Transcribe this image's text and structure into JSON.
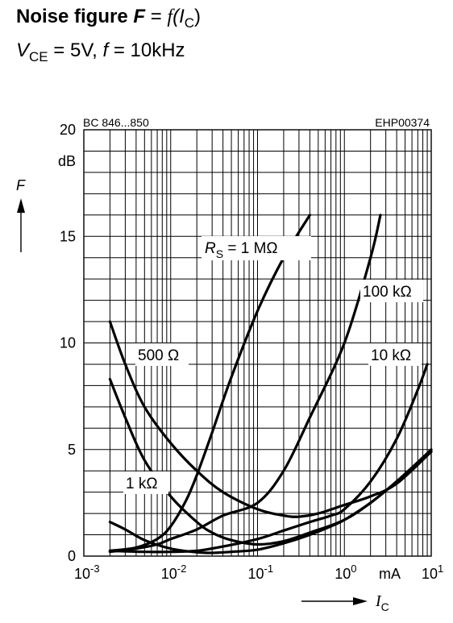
{
  "chart_data": {
    "type": "line",
    "title_prefix": "Noise figure",
    "title_F": "F",
    "title_eq": " = ",
    "title_f": "f",
    "title_I": "(I",
    "title_C": "C",
    "title_close": ")",
    "sub_V": "V",
    "sub_CE": "CE",
    "sub_rest1": " = 5V, ",
    "sub_f": "f",
    "sub_rest2": " = 10kHz",
    "part_label": "BC 846...850",
    "code_label": "EHP00374",
    "ylabel": "F",
    "yunit": "dB",
    "xlabel_I": "I",
    "xlabel_C": "C",
    "xunit": "mA",
    "x_scale": "log",
    "xlim": [
      0.001,
      10
    ],
    "ylim": [
      0,
      20
    ],
    "grid": true,
    "y_ticks": [
      {
        "value": 0,
        "label": "0"
      },
      {
        "value": 5,
        "label": "5"
      },
      {
        "value": 10,
        "label": "10"
      },
      {
        "value": 15,
        "label": "15"
      },
      {
        "value": 20,
        "label": "20"
      }
    ],
    "x_ticks": [
      {
        "value": 0.001,
        "base": "10",
        "exp": "-3"
      },
      {
        "value": 0.01,
        "base": "10",
        "exp": "-2"
      },
      {
        "value": 0.1,
        "base": "10",
        "exp": "-1"
      },
      {
        "value": 1,
        "base": "10",
        "exp": "0"
      },
      {
        "value": 10,
        "base": "10",
        "exp": "1"
      }
    ],
    "series": [
      {
        "name": "R",
        "name_sub": "S",
        "name_rest": " = 1 MΩ",
        "points": [
          [
            0.002,
            0.25
          ],
          [
            0.004,
            0.4
          ],
          [
            0.007,
            0.8
          ],
          [
            0.01,
            1.4
          ],
          [
            0.015,
            2.6
          ],
          [
            0.02,
            3.8
          ],
          [
            0.03,
            5.8
          ],
          [
            0.05,
            8.4
          ],
          [
            0.1,
            11.5
          ],
          [
            0.2,
            14.0
          ],
          [
            0.4,
            16.0
          ]
        ]
      },
      {
        "name": "100 kΩ",
        "points": [
          [
            0.002,
            0.2
          ],
          [
            0.004,
            0.35
          ],
          [
            0.007,
            0.55
          ],
          [
            0.01,
            0.8
          ],
          [
            0.02,
            1.25
          ],
          [
            0.04,
            1.9
          ],
          [
            0.1,
            2.5
          ],
          [
            0.2,
            4.0
          ],
          [
            0.4,
            6.5
          ],
          [
            1,
            10.0
          ],
          [
            2,
            14.0
          ],
          [
            2.6,
            16.0
          ]
        ]
      },
      {
        "name": "10 kΩ",
        "points": [
          [
            0.002,
            0.25
          ],
          [
            0.005,
            0.2
          ],
          [
            0.01,
            0.2
          ],
          [
            0.02,
            0.25
          ],
          [
            0.04,
            0.45
          ],
          [
            0.1,
            0.8
          ],
          [
            0.2,
            1.2
          ],
          [
            0.4,
            1.6
          ],
          [
            0.7,
            1.9
          ],
          [
            1,
            2.2
          ],
          [
            2,
            3.5
          ],
          [
            4,
            5.5
          ],
          [
            7,
            7.8
          ],
          [
            9,
            9.0
          ]
        ]
      },
      {
        "name": "1 kΩ",
        "points": [
          [
            0.002,
            1.6
          ],
          [
            0.003,
            1.25
          ],
          [
            0.005,
            0.75
          ],
          [
            0.01,
            0.35
          ],
          [
            0.02,
            0.18
          ],
          [
            0.03,
            0.15
          ],
          [
            0.05,
            0.2
          ],
          [
            0.1,
            0.3
          ],
          [
            0.2,
            0.6
          ],
          [
            0.4,
            1.0
          ],
          [
            0.7,
            1.4
          ],
          [
            1,
            1.7
          ],
          [
            2,
            2.5
          ],
          [
            4,
            3.5
          ],
          [
            10,
            4.9
          ]
        ]
      },
      {
        "name": "500 Ω",
        "points": [
          [
            0.002,
            8.3
          ],
          [
            0.003,
            6.5
          ],
          [
            0.005,
            4.5
          ],
          [
            0.01,
            2.8
          ],
          [
            0.02,
            1.6
          ],
          [
            0.03,
            1.1
          ],
          [
            0.05,
            0.75
          ],
          [
            0.1,
            0.55
          ],
          [
            0.2,
            0.7
          ],
          [
            0.4,
            1.1
          ],
          [
            1,
            1.7
          ],
          [
            2,
            2.5
          ],
          [
            4,
            3.5
          ],
          [
            10,
            5.0
          ]
        ]
      },
      {
        "name": "",
        "points": [
          [
            0.002,
            11.0
          ],
          [
            0.003,
            9.0
          ],
          [
            0.005,
            7.0
          ],
          [
            0.01,
            5.3
          ],
          [
            0.02,
            4.0
          ],
          [
            0.04,
            3.0
          ],
          [
            0.1,
            2.2
          ],
          [
            0.2,
            1.9
          ],
          [
            0.3,
            1.85
          ],
          [
            0.5,
            2.0
          ],
          [
            1,
            2.4
          ],
          [
            2,
            2.8
          ],
          [
            4,
            3.4
          ],
          [
            10,
            4.9
          ]
        ]
      }
    ]
  }
}
